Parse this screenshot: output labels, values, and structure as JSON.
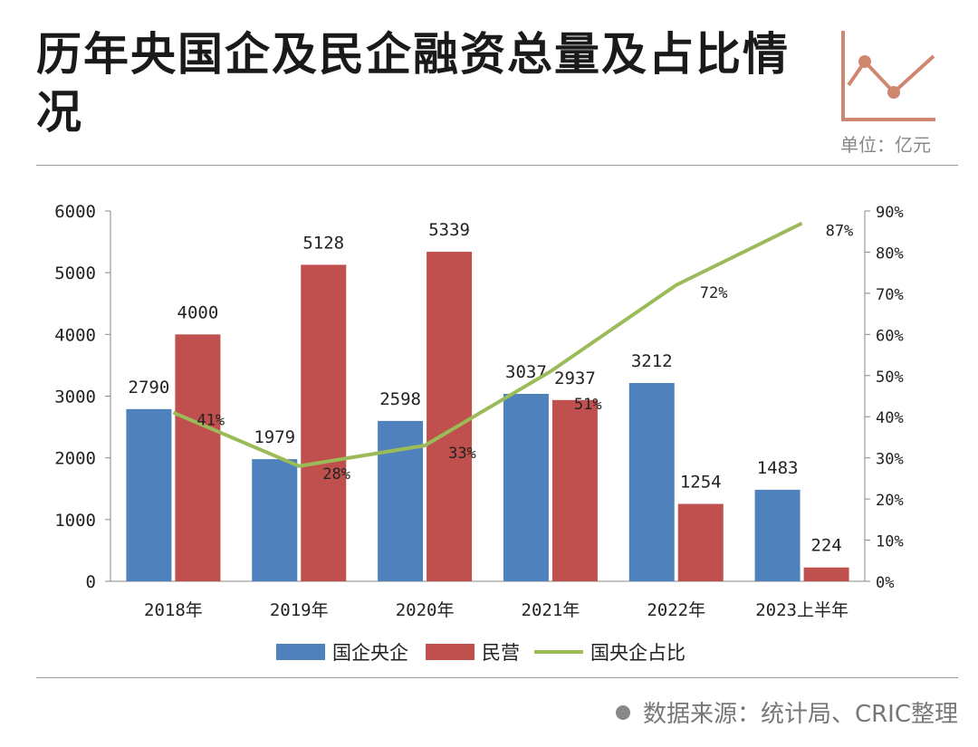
{
  "title": "历年央国企及民企融资总量及占比情况",
  "unit": "单位：亿元",
  "source": "数据来源：统计局、CRIC整理",
  "colors": {
    "soe": "#4f81bd",
    "private": "#c0504d",
    "ratio": "#9bbb59",
    "icon": "#d08770"
  },
  "chart_data": {
    "type": "bar",
    "categories": [
      "2018年",
      "2019年",
      "2020年",
      "2021年",
      "2022年",
      "2023上半年"
    ],
    "series": [
      {
        "name": "国企央企",
        "type": "bar",
        "axis": "left",
        "values": [
          2790,
          1979,
          2598,
          3037,
          3212,
          1483
        ]
      },
      {
        "name": "民营",
        "type": "bar",
        "axis": "left",
        "values": [
          4000,
          5128,
          5339,
          2937,
          1254,
          224
        ]
      },
      {
        "name": "国央企占比",
        "type": "line",
        "axis": "right",
        "values": [
          41,
          28,
          33,
          51,
          72,
          87
        ]
      }
    ],
    "ylim": [
      0,
      6000
    ],
    "yticks": [
      0,
      1000,
      2000,
      3000,
      4000,
      5000,
      6000
    ],
    "y2lim": [
      0,
      90
    ],
    "y2ticks": [
      "0%",
      "10%",
      "20%",
      "30%",
      "40%",
      "50%",
      "60%",
      "70%",
      "80%",
      "90%"
    ],
    "legend": "bottom"
  }
}
